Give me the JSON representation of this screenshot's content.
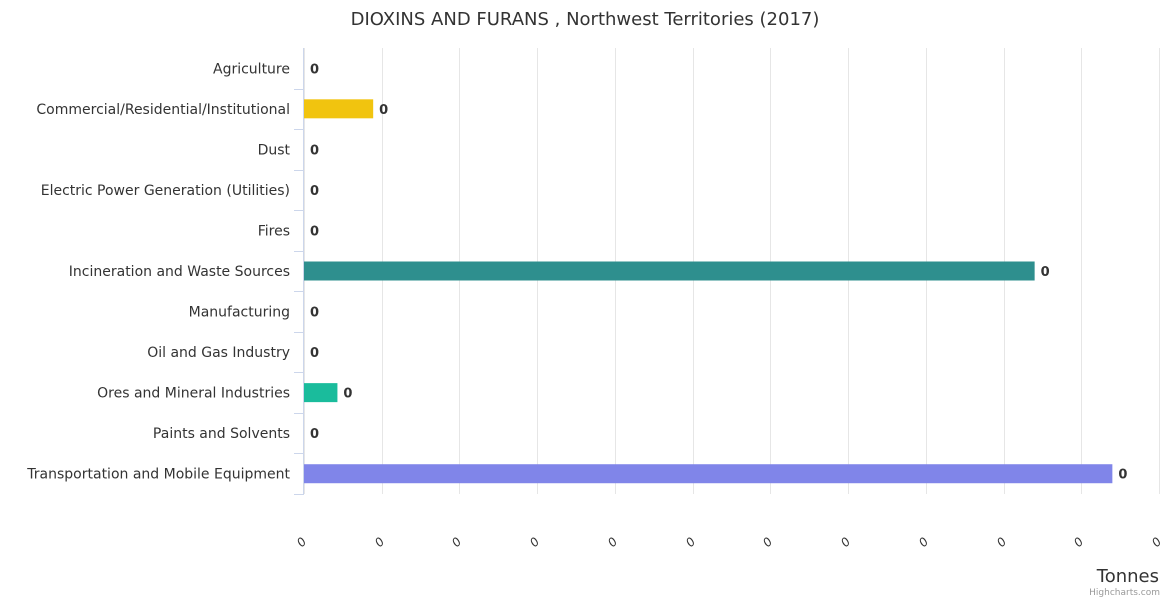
{
  "chart_data": {
    "type": "bar",
    "orientation": "horizontal",
    "title": "DIOXINS AND FURANS , Northwest Territories (2017)",
    "xlabel": "",
    "ylabel": "Tonnes",
    "categories": [
      "Agriculture",
      "Commercial/Residential/Institutional",
      "Dust",
      "Electric Power Generation (Utilities)",
      "Fires",
      "Incineration and Waste Sources",
      "Manufacturing",
      "Oil and Gas Industry",
      "Ores and Mineral Industries",
      "Paints and Solvents",
      "Transportation and Mobile Equipment"
    ],
    "values": [
      0,
      8.9e-05,
      0,
      0,
      0,
      0.00094,
      0,
      0,
      4.3e-05,
      0,
      0.00104
    ],
    "data_labels": [
      "0",
      "0",
      "0",
      "0",
      "0",
      "0",
      "0",
      "0",
      "0",
      "0",
      "0"
    ],
    "colors": [
      "#7cb5ec",
      "#f1c40f",
      "#7cb5ec",
      "#7cb5ec",
      "#7cb5ec",
      "#2e8f8e",
      "#7cb5ec",
      "#7cb5ec",
      "#1abc9c",
      "#7cb5ec",
      "#8085e9"
    ],
    "xlim": [
      0,
      0.0011
    ],
    "tick_values": [
      0,
      0.0001,
      0.0002,
      0.0003,
      0.0004,
      0.0005,
      0.0006,
      0.0007,
      0.0008,
      0.0009,
      0.001,
      0.0011
    ],
    "tick_labels": [
      "0",
      "0",
      "0",
      "0",
      "0",
      "0",
      "0",
      "0",
      "0",
      "0",
      "0",
      "0"
    ],
    "grid": true,
    "legend": "none"
  },
  "credits": "Highcharts.com"
}
